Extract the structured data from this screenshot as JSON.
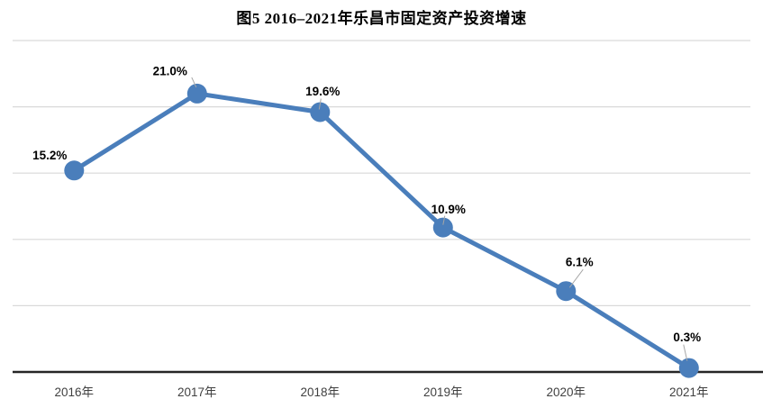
{
  "chart_data": {
    "type": "line",
    "title": "图5  2016–2021年乐昌市固定资产投资增速",
    "categories": [
      "2016年",
      "2017年",
      "2018年",
      "2019年",
      "2020年",
      "2021年"
    ],
    "values": [
      15.2,
      21.0,
      19.6,
      10.9,
      6.1,
      0.3
    ],
    "data_labels": [
      "15.2%",
      "21.0%",
      "19.6%",
      "10.9%",
      "6.1%",
      "0.3%"
    ],
    "xlabel": "",
    "ylabel": "",
    "ylim": [
      0,
      25
    ],
    "grid_step": 5,
    "grid": true,
    "legend": false,
    "y_axis_labels_visible": false,
    "colors": {
      "line": "#4A7EBB",
      "marker": "#4A7EBB",
      "gridline": "#D9D9D9",
      "axis": "#262626",
      "data_label": "#000000",
      "tick_label": "#404040",
      "leader": "#A6A6A6",
      "title": "#000000"
    }
  }
}
